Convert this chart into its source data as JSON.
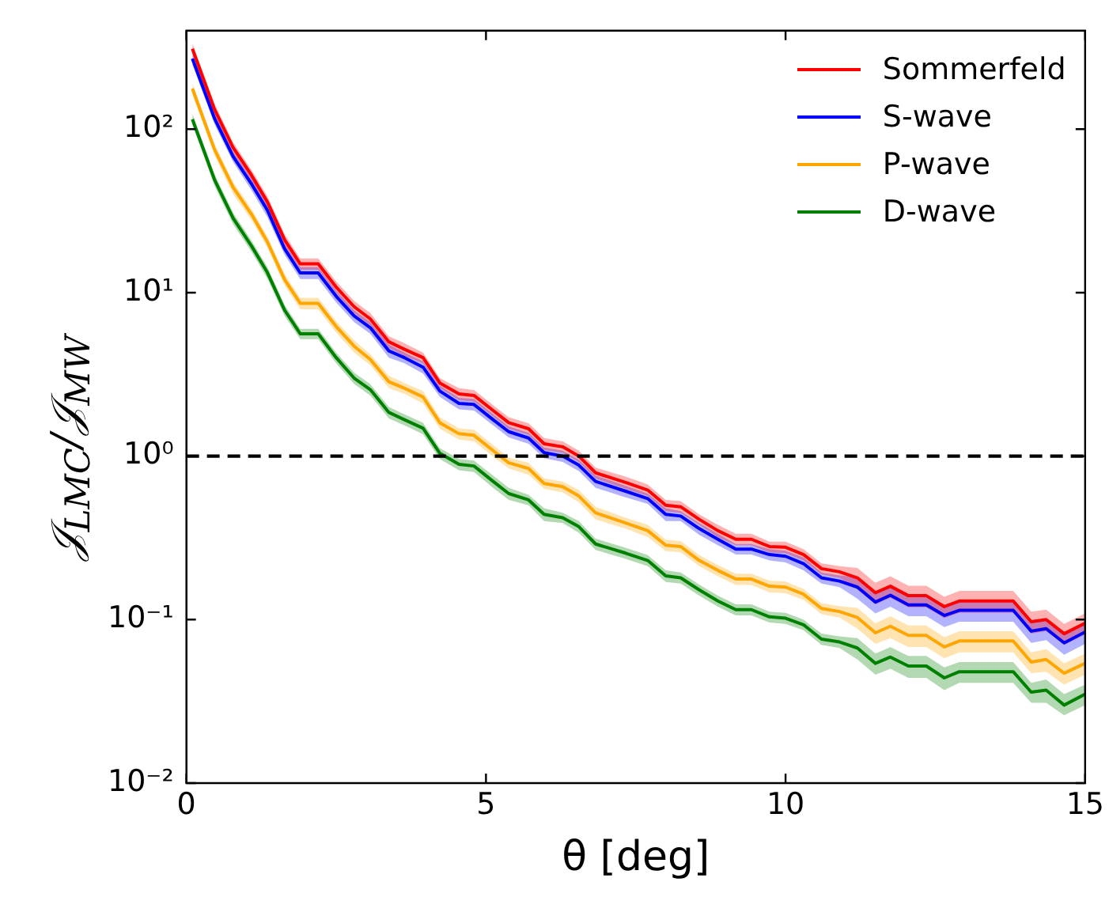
{
  "chart_data": {
    "type": "line",
    "xlabel": "θ [deg]",
    "ylabel": "𝒥$_{LMC}$/𝒥$_{MW}$",
    "log": "y",
    "grid": false,
    "legend": "top right",
    "marker": "none",
    "line_style": "solid",
    "x": [
      0.1,
      0.47,
      0.78,
      1.09,
      1.35,
      1.64,
      1.9,
      2.2,
      2.5,
      2.8,
      3.07,
      3.38,
      3.64,
      3.95,
      4.23,
      4.55,
      4.8,
      5.12,
      5.38,
      5.71,
      5.97,
      6.28,
      6.55,
      6.83,
      7.33,
      7.7,
      8.0,
      8.25,
      8.56,
      8.87,
      9.17,
      9.43,
      9.73,
      10.0,
      10.3,
      10.6,
      10.9,
      11.2,
      11.5,
      11.75,
      12.05,
      12.35,
      12.65,
      12.9,
      13.8,
      14.1,
      14.35,
      14.65,
      15
    ],
    "xlim": [
      0,
      15
    ],
    "xticks": [
      0,
      5,
      10,
      15
    ],
    "ylim": [
      0.01,
      400
    ],
    "yticks": [
      {
        "value": 0.01,
        "label": "10⁻²"
      },
      {
        "value": 0.1,
        "label": "10⁻¹"
      },
      {
        "value": 1,
        "label": "10⁰"
      },
      {
        "value": 10,
        "label": "10¹"
      },
      {
        "value": 100,
        "label": "10²"
      }
    ],
    "ref_lines": [
      {
        "axis": "y",
        "value": 1,
        "color": "#000000",
        "line_style": "dashed"
      }
    ],
    "series": [
      {
        "name": "Sommerfeld",
        "color": "#ff0000",
        "values": [
          310,
          132,
          77,
          52,
          36,
          21,
          15,
          15,
          10.8,
          8.2,
          6.9,
          5.0,
          4.5,
          4.0,
          2.8,
          2.4,
          2.35,
          1.9,
          1.6,
          1.47,
          1.19,
          1.14,
          1.0,
          0.79,
          0.69,
          0.62,
          0.5,
          0.49,
          0.41,
          0.35,
          0.31,
          0.31,
          0.28,
          0.277,
          0.25,
          0.205,
          0.196,
          0.18,
          0.146,
          0.16,
          0.14,
          0.14,
          0.12,
          0.13,
          0.13,
          0.097,
          0.1,
          0.082,
          0.095
        ],
        "lower": [
          285,
          121,
          71,
          48,
          33,
          19.3,
          13.8,
          13.8,
          9.9,
          7.5,
          6.3,
          4.6,
          4.1,
          3.7,
          2.6,
          2.2,
          2.16,
          1.75,
          1.47,
          1.35,
          1.09,
          1.05,
          0.92,
          0.73,
          0.63,
          0.57,
          0.46,
          0.45,
          0.38,
          0.32,
          0.285,
          0.285,
          0.258,
          0.255,
          0.23,
          0.189,
          0.18,
          0.153,
          0.124,
          0.136,
          0.119,
          0.119,
          0.102,
          0.11,
          0.11,
          0.082,
          0.085,
          0.07,
          0.081
        ],
        "upper": [
          335,
          143,
          83,
          56,
          39,
          22.7,
          16.2,
          16.2,
          11.7,
          8.9,
          7.5,
          5.4,
          4.9,
          4.3,
          3.0,
          2.6,
          2.54,
          2.05,
          1.73,
          1.59,
          1.29,
          1.23,
          1.08,
          0.85,
          0.75,
          0.67,
          0.54,
          0.53,
          0.44,
          0.38,
          0.335,
          0.335,
          0.3,
          0.3,
          0.27,
          0.221,
          0.212,
          0.207,
          0.168,
          0.184,
          0.161,
          0.161,
          0.138,
          0.15,
          0.15,
          0.112,
          0.115,
          0.094,
          0.109
        ]
      },
      {
        "name": "S-wave",
        "color": "#0000ff",
        "values": [
          270,
          116,
          68,
          46,
          32,
          18.5,
          13.2,
          13.2,
          9.5,
          7.2,
          6.1,
          4.4,
          4.0,
          3.5,
          2.5,
          2.1,
          2.07,
          1.67,
          1.41,
          1.29,
          1.05,
          1.0,
          0.88,
          0.7,
          0.61,
          0.55,
          0.44,
          0.43,
          0.36,
          0.31,
          0.27,
          0.27,
          0.25,
          0.244,
          0.22,
          0.18,
          0.172,
          0.158,
          0.128,
          0.141,
          0.123,
          0.123,
          0.106,
          0.114,
          0.114,
          0.085,
          0.088,
          0.072,
          0.084
        ],
        "lower": [
          248,
          107,
          63,
          42,
          29,
          17,
          12.1,
          12.1,
          8.7,
          6.6,
          5.6,
          4.0,
          3.7,
          3.2,
          2.3,
          1.93,
          1.9,
          1.54,
          1.3,
          1.19,
          0.97,
          0.92,
          0.81,
          0.64,
          0.56,
          0.51,
          0.4,
          0.4,
          0.33,
          0.285,
          0.25,
          0.25,
          0.23,
          0.224,
          0.2,
          0.166,
          0.158,
          0.134,
          0.109,
          0.12,
          0.105,
          0.105,
          0.09,
          0.097,
          0.097,
          0.072,
          0.075,
          0.061,
          0.071
        ],
        "upper": [
          292,
          125,
          73,
          50,
          35,
          20,
          14.3,
          14.3,
          10.3,
          7.8,
          6.6,
          4.8,
          4.3,
          3.8,
          2.7,
          2.27,
          2.24,
          1.8,
          1.52,
          1.39,
          1.13,
          1.08,
          0.95,
          0.76,
          0.66,
          0.59,
          0.48,
          0.46,
          0.39,
          0.335,
          0.29,
          0.29,
          0.27,
          0.264,
          0.24,
          0.194,
          0.186,
          0.182,
          0.147,
          0.162,
          0.141,
          0.141,
          0.122,
          0.131,
          0.131,
          0.098,
          0.101,
          0.083,
          0.097
        ]
      },
      {
        "name": "P-wave",
        "color": "#ffa500",
        "values": [
          177,
          75,
          44,
          30,
          20.5,
          12,
          8.6,
          8.6,
          6.2,
          4.7,
          3.9,
          2.85,
          2.6,
          2.3,
          1.6,
          1.37,
          1.34,
          1.08,
          0.91,
          0.84,
          0.68,
          0.65,
          0.57,
          0.45,
          0.39,
          0.35,
          0.285,
          0.28,
          0.23,
          0.2,
          0.177,
          0.177,
          0.16,
          0.158,
          0.143,
          0.117,
          0.112,
          0.103,
          0.083,
          0.091,
          0.08,
          0.08,
          0.068,
          0.074,
          0.074,
          0.055,
          0.057,
          0.047,
          0.054
        ],
        "lower": [
          163,
          69,
          40,
          27.6,
          18.9,
          11,
          7.9,
          7.9,
          5.7,
          4.3,
          3.6,
          2.6,
          2.4,
          2.1,
          1.47,
          1.26,
          1.23,
          0.99,
          0.84,
          0.77,
          0.63,
          0.6,
          0.52,
          0.41,
          0.36,
          0.32,
          0.262,
          0.258,
          0.212,
          0.184,
          0.163,
          0.163,
          0.147,
          0.145,
          0.132,
          0.108,
          0.103,
          0.088,
          0.071,
          0.077,
          0.068,
          0.068,
          0.058,
          0.063,
          0.063,
          0.047,
          0.048,
          0.04,
          0.046
        ],
        "upper": [
          191,
          81,
          47.5,
          32.4,
          22.1,
          13,
          9.3,
          9.3,
          6.7,
          5.1,
          4.2,
          3.1,
          2.8,
          2.5,
          1.73,
          1.48,
          1.45,
          1.17,
          0.98,
          0.91,
          0.73,
          0.7,
          0.62,
          0.49,
          0.42,
          0.38,
          0.308,
          0.302,
          0.248,
          0.216,
          0.191,
          0.191,
          0.173,
          0.171,
          0.154,
          0.126,
          0.121,
          0.118,
          0.095,
          0.105,
          0.092,
          0.092,
          0.078,
          0.085,
          0.085,
          0.063,
          0.066,
          0.054,
          0.062
        ]
      },
      {
        "name": "D-wave",
        "color": "#008000",
        "values": [
          115,
          49,
          28.5,
          19.2,
          13.3,
          7.8,
          5.6,
          5.6,
          4.0,
          3.0,
          2.55,
          1.85,
          1.67,
          1.48,
          1.04,
          0.89,
          0.87,
          0.7,
          0.59,
          0.54,
          0.44,
          0.42,
          0.37,
          0.29,
          0.255,
          0.23,
          0.185,
          0.18,
          0.152,
          0.13,
          0.115,
          0.115,
          0.104,
          0.102,
          0.093,
          0.076,
          0.073,
          0.067,
          0.054,
          0.059,
          0.052,
          0.052,
          0.044,
          0.048,
          0.048,
          0.036,
          0.037,
          0.03,
          0.035
        ],
        "lower": [
          106,
          45,
          26.2,
          17.7,
          12.2,
          7.2,
          5.2,
          5.2,
          3.7,
          2.76,
          2.35,
          1.7,
          1.54,
          1.36,
          0.96,
          0.82,
          0.8,
          0.64,
          0.54,
          0.5,
          0.4,
          0.39,
          0.34,
          0.267,
          0.235,
          0.212,
          0.17,
          0.166,
          0.14,
          0.12,
          0.106,
          0.106,
          0.096,
          0.094,
          0.086,
          0.07,
          0.067,
          0.057,
          0.046,
          0.05,
          0.044,
          0.044,
          0.037,
          0.041,
          0.041,
          0.031,
          0.031,
          0.026,
          0.03
        ],
        "upper": [
          124,
          53,
          30.8,
          20.7,
          14.4,
          8.4,
          6.0,
          6.0,
          4.3,
          3.24,
          2.75,
          2.0,
          1.8,
          1.6,
          1.12,
          0.96,
          0.94,
          0.76,
          0.64,
          0.58,
          0.48,
          0.45,
          0.4,
          0.313,
          0.275,
          0.248,
          0.2,
          0.194,
          0.164,
          0.14,
          0.124,
          0.124,
          0.112,
          0.11,
          0.1,
          0.082,
          0.079,
          0.077,
          0.062,
          0.068,
          0.06,
          0.06,
          0.051,
          0.055,
          0.055,
          0.041,
          0.043,
          0.035,
          0.04
        ]
      }
    ]
  }
}
